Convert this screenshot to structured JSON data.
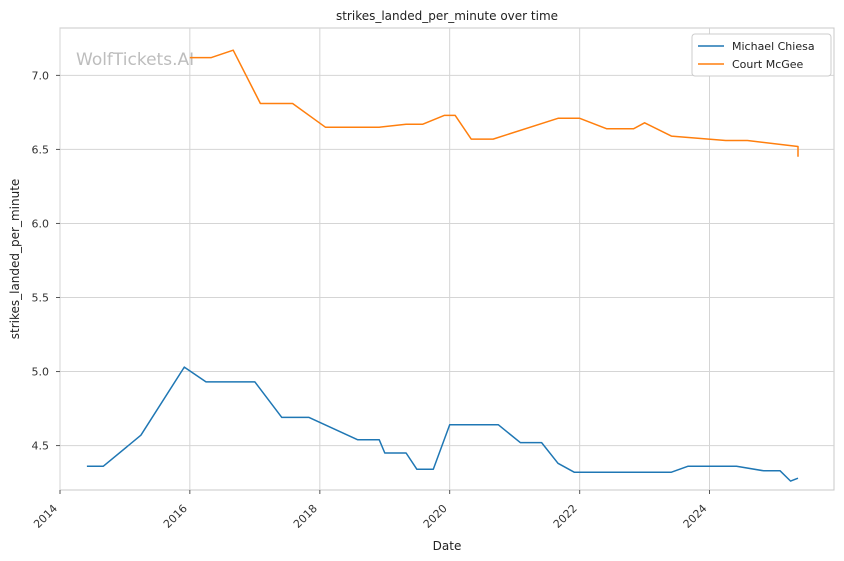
{
  "chart_data": {
    "type": "line",
    "title": "strikes_landed_per_minute over time",
    "xlabel": "Date",
    "ylabel": "strikes_landed_per_minute",
    "watermark": "WolfTickets.AI",
    "x_ticks": [
      "2014",
      "2016",
      "2018",
      "2020",
      "2022",
      "2024"
    ],
    "y_ticks": [
      "4.5",
      "5.0",
      "5.5",
      "6.0",
      "6.5",
      "7.0"
    ],
    "xlim": [
      "2014-01-01",
      "2025-12-01"
    ],
    "ylim": [
      4.2,
      7.32
    ],
    "grid": true,
    "legend_position": "top-right",
    "series": [
      {
        "name": "Michael Chiesa",
        "color": "#1f77b4",
        "points": [
          [
            "2014-06-01",
            4.36
          ],
          [
            "2014-09-01",
            4.36
          ],
          [
            "2015-04-01",
            4.57
          ],
          [
            "2015-12-01",
            5.03
          ],
          [
            "2016-04-01",
            4.93
          ],
          [
            "2016-09-01",
            4.93
          ],
          [
            "2017-01-01",
            4.93
          ],
          [
            "2017-06-01",
            4.69
          ],
          [
            "2017-11-01",
            4.69
          ],
          [
            "2018-08-01",
            4.54
          ],
          [
            "2018-12-01",
            4.54
          ],
          [
            "2019-01-01",
            4.45
          ],
          [
            "2019-05-01",
            4.45
          ],
          [
            "2019-07-01",
            4.34
          ],
          [
            "2019-10-01",
            4.34
          ],
          [
            "2020-01-01",
            4.64
          ],
          [
            "2020-10-01",
            4.64
          ],
          [
            "2021-02-01",
            4.52
          ],
          [
            "2021-06-01",
            4.52
          ],
          [
            "2021-09-01",
            4.38
          ],
          [
            "2021-12-01",
            4.32
          ],
          [
            "2023-06-01",
            4.32
          ],
          [
            "2023-09-01",
            4.36
          ],
          [
            "2024-06-01",
            4.36
          ],
          [
            "2024-11-01",
            4.33
          ],
          [
            "2025-02-01",
            4.33
          ],
          [
            "2025-04-01",
            4.26
          ],
          [
            "2026-01-01",
            4.28
          ]
        ]
      },
      {
        "name": "Court McGee",
        "color": "#ff7f0e",
        "points": [
          [
            "2016-01-01",
            7.12
          ],
          [
            "2016-05-01",
            7.12
          ],
          [
            "2016-09-01",
            7.17
          ],
          [
            "2017-02-01",
            6.81
          ],
          [
            "2017-08-01",
            6.81
          ],
          [
            "2018-02-01",
            6.65
          ],
          [
            "2018-12-01",
            6.65
          ],
          [
            "2019-05-01",
            6.67
          ],
          [
            "2019-08-01",
            6.67
          ],
          [
            "2019-12-01",
            6.73
          ],
          [
            "2020-02-01",
            6.73
          ],
          [
            "2020-05-01",
            6.57
          ],
          [
            "2020-09-01",
            6.57
          ],
          [
            "2021-09-01",
            6.71
          ],
          [
            "2022-01-01",
            6.71
          ],
          [
            "2022-06-01",
            6.64
          ],
          [
            "2022-11-01",
            6.64
          ],
          [
            "2023-01-01",
            6.68
          ],
          [
            "2023-06-01",
            6.59
          ],
          [
            "2024-04-01",
            6.56
          ],
          [
            "2024-08-01",
            6.56
          ],
          [
            "2025-06-01",
            6.52
          ],
          [
            "2025-10-01",
            6.52
          ],
          [
            "2025-12-01",
            6.46
          ],
          [
            "2026-01-01",
            6.46
          ],
          [
            "2026-06-01",
            6.45
          ]
        ]
      }
    ]
  }
}
